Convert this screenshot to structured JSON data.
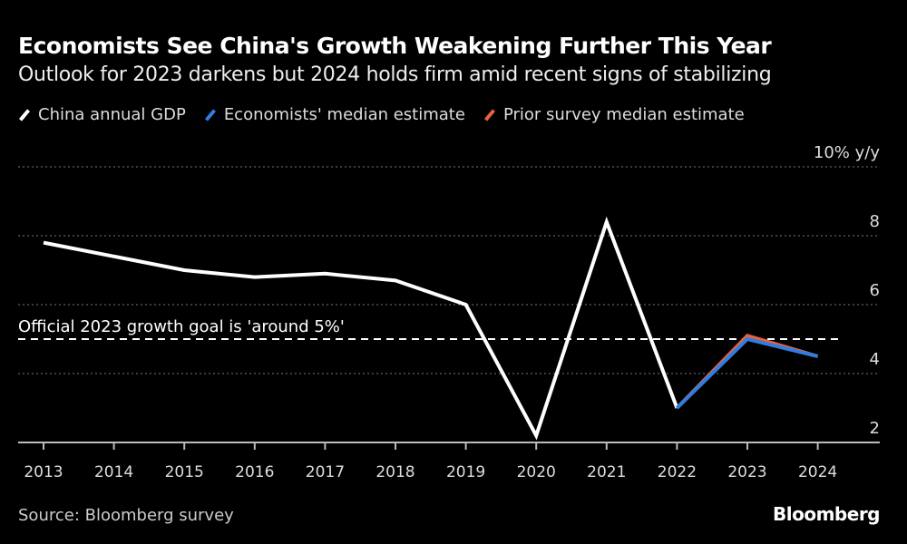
{
  "title": "Economists See China's Growth Weakening Further This Year",
  "subtitle": "Outlook for 2023 darkens but 2024 holds firm amid recent signs of stabilizing",
  "source": "Source: Bloomberg survey",
  "brand": "Bloomberg",
  "chart_data": {
    "type": "line",
    "title": "Economists See China's Growth Weakening Further This Year",
    "ylabel": "10% y/y",
    "ylim": [
      2,
      10
    ],
    "yticks": [
      {
        "v": 10,
        "label": "10% y/y"
      },
      {
        "v": 8,
        "label": "8"
      },
      {
        "v": 6,
        "label": "6"
      },
      {
        "v": 4,
        "label": "4"
      },
      {
        "v": 2,
        "label": "2"
      }
    ],
    "categories": [
      "2013",
      "2014",
      "2015",
      "2016",
      "2017",
      "2018",
      "2019",
      "2020",
      "2021",
      "2022",
      "2023",
      "2024"
    ],
    "grid": true,
    "legend": "top-left",
    "series": [
      {
        "name": "China annual GDP",
        "color": "#ffffff",
        "x": [
          "2013",
          "2014",
          "2015",
          "2016",
          "2017",
          "2018",
          "2019",
          "2020",
          "2021",
          "2022"
        ],
        "values": [
          7.8,
          7.4,
          7.0,
          6.8,
          6.9,
          6.7,
          6.0,
          2.2,
          8.4,
          3.0
        ]
      },
      {
        "name": "Prior survey median estimate",
        "color": "#e8613c",
        "x": [
          "2022",
          "2023",
          "2024"
        ],
        "values": [
          3.0,
          5.1,
          4.5
        ]
      },
      {
        "name": "Economists' median estimate",
        "color": "#2f7de1",
        "x": [
          "2022",
          "2023",
          "2024"
        ],
        "values": [
          3.0,
          5.0,
          4.5
        ]
      }
    ],
    "annotations": [
      {
        "type": "hline",
        "value": 5,
        "label": "Official 2023 growth goal is 'around 5%'"
      }
    ]
  }
}
